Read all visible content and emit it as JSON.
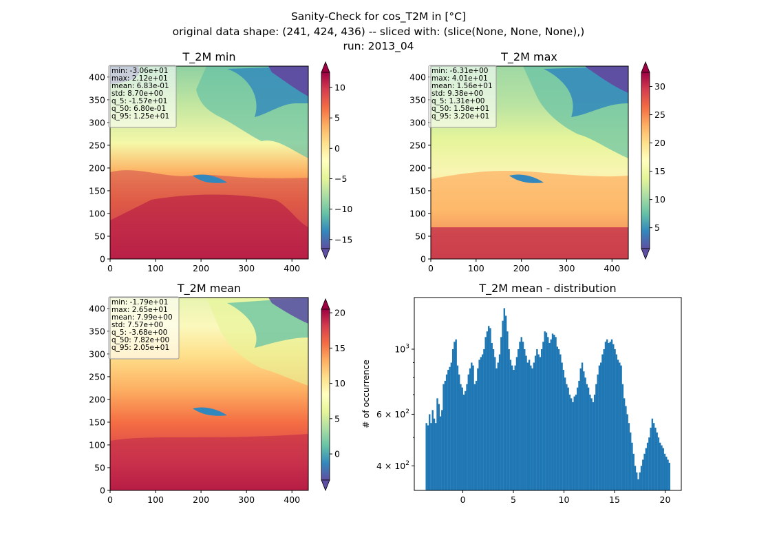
{
  "figure": {
    "suptitle": [
      "Sanity-Check for cos_T2M in [°C]",
      "original data shape: (241, 424, 436) -- sliced with: (slice(None, None, None),)",
      "run: 2013_04"
    ]
  },
  "colors": {
    "spectral_r": [
      "#5e4fa2",
      "#3288bd",
      "#66c2a5",
      "#abdda4",
      "#e6f598",
      "#ffffbf",
      "#fee08b",
      "#fdae61",
      "#f46d43",
      "#d53e4f",
      "#9e0142"
    ],
    "hist_bar": "#1f77b4"
  },
  "chart_data": [
    {
      "type": "heatmap",
      "title": "T_2M min",
      "xlim": [
        0,
        436
      ],
      "ylim": [
        0,
        424
      ],
      "xticks": [
        "0",
        "100",
        "200",
        "300",
        "400"
      ],
      "yticks": [
        "0",
        "50",
        "100",
        "150",
        "200",
        "250",
        "300",
        "350",
        "400"
      ],
      "colorbar": {
        "vmin": -16.5,
        "vmax": 12.5,
        "extend": "both",
        "ticks": [
          "−15",
          "−10",
          "−5",
          "0",
          "5",
          "10"
        ],
        "tick_values": [
          -15,
          -10,
          -5,
          0,
          5,
          10
        ]
      },
      "stats": [
        "min: -3.06e+01",
        "max: 2.12e+01",
        "mean: 6.83e-01",
        "std: 8.70e+00",
        "q_5: -1.57e+01",
        "q_50: 6.80e-01",
        "q_95: 1.25e+01"
      ]
    },
    {
      "type": "heatmap",
      "title": "T_2M max",
      "xlim": [
        0,
        436
      ],
      "ylim": [
        0,
        424
      ],
      "xticks": [
        "0",
        "100",
        "200",
        "300",
        "400"
      ],
      "yticks": [
        "0",
        "50",
        "100",
        "150",
        "200",
        "250",
        "300",
        "350",
        "400"
      ],
      "colorbar": {
        "vmin": 1.3,
        "vmax": 32.5,
        "extend": "both",
        "ticks": [
          "5",
          "10",
          "15",
          "20",
          "25",
          "30"
        ],
        "tick_values": [
          5,
          10,
          15,
          20,
          25,
          30
        ]
      },
      "stats": [
        "min: -6.31e+00",
        "max: 4.01e+01",
        "mean: 1.56e+01",
        "std: 9.38e+00",
        "q_5: 1.31e+00",
        "q_50: 1.58e+01",
        "q_95: 3.20e+01"
      ]
    },
    {
      "type": "heatmap",
      "title": "T_2M mean",
      "xlim": [
        0,
        436
      ],
      "ylim": [
        0,
        424
      ],
      "xticks": [
        "0",
        "100",
        "200",
        "300",
        "400"
      ],
      "yticks": [
        "0",
        "50",
        "100",
        "150",
        "200",
        "250",
        "300",
        "350",
        "400"
      ],
      "colorbar": {
        "vmin": -3.7,
        "vmax": 20.5,
        "extend": "both",
        "ticks": [
          "0",
          "5",
          "10",
          "15",
          "20"
        ],
        "tick_values": [
          0,
          5,
          10,
          15,
          20
        ]
      },
      "stats": [
        "min: -1.79e+01",
        "max: 2.65e+01",
        "mean: 7.99e+00",
        "std: 7.57e+00",
        "q_5: -3.68e+00",
        "q_50: 7.82e+00",
        "q_95: 2.05e+01"
      ]
    },
    {
      "type": "bar",
      "title": "T_2M mean - distribution",
      "ylabel": "# of occurrence",
      "yscale": "log",
      "xlim": [
        -4.8,
        21.6
      ],
      "ylim": [
        330,
        1500
      ],
      "xticks": [
        "0",
        "5",
        "10",
        "15",
        "20"
      ],
      "xtick_values": [
        0,
        5,
        10,
        15,
        20
      ],
      "ymajor": [
        {
          "value": 400,
          "label": [
            "4 × 10",
            "2"
          ]
        },
        {
          "value": 600,
          "label": [
            "6 × 10",
            "2"
          ]
        },
        {
          "value": 1000,
          "label": [
            "10",
            "3"
          ]
        }
      ],
      "yminor": [
        500,
        700,
        800,
        900
      ],
      "bin_range": [
        -3.68,
        20.5
      ],
      "counts": [
        560,
        550,
        600,
        560,
        620,
        580,
        560,
        680,
        650,
        590,
        620,
        760,
        780,
        820,
        850,
        870,
        900,
        1000,
        1060,
        1080,
        880,
        820,
        760,
        740,
        700,
        720,
        760,
        820,
        860,
        900,
        880,
        760,
        780,
        860,
        920,
        940,
        960,
        1000,
        1100,
        1150,
        1200,
        1180,
        1050,
        1000,
        940,
        860,
        900,
        960,
        1100,
        1250,
        1380,
        1300,
        1150,
        1000,
        920,
        880,
        850,
        880,
        940,
        1000,
        1060,
        1100,
        1060,
        1000,
        950,
        900,
        920,
        880,
        860,
        900,
        950,
        1000,
        960,
        940,
        1000,
        1060,
        1150,
        1140,
        1100,
        1050,
        1080,
        1130,
        1120,
        1100,
        1020,
        1000,
        960,
        900,
        850,
        800,
        760,
        740,
        700,
        680,
        660,
        690,
        700,
        740,
        780,
        860,
        900,
        840,
        800,
        760,
        740,
        700,
        680,
        660,
        700,
        760,
        820,
        880,
        900,
        960,
        1000,
        1060,
        1080,
        1050,
        1060,
        1080,
        1040,
        1000,
        960,
        920,
        900,
        880,
        760,
        680,
        640,
        600,
        560,
        520,
        480,
        440,
        400,
        380,
        360,
        380,
        400,
        420,
        440,
        460,
        480,
        500,
        540,
        580,
        560,
        540,
        520,
        500,
        480,
        470,
        460,
        440,
        430,
        420,
        410
      ]
    }
  ]
}
